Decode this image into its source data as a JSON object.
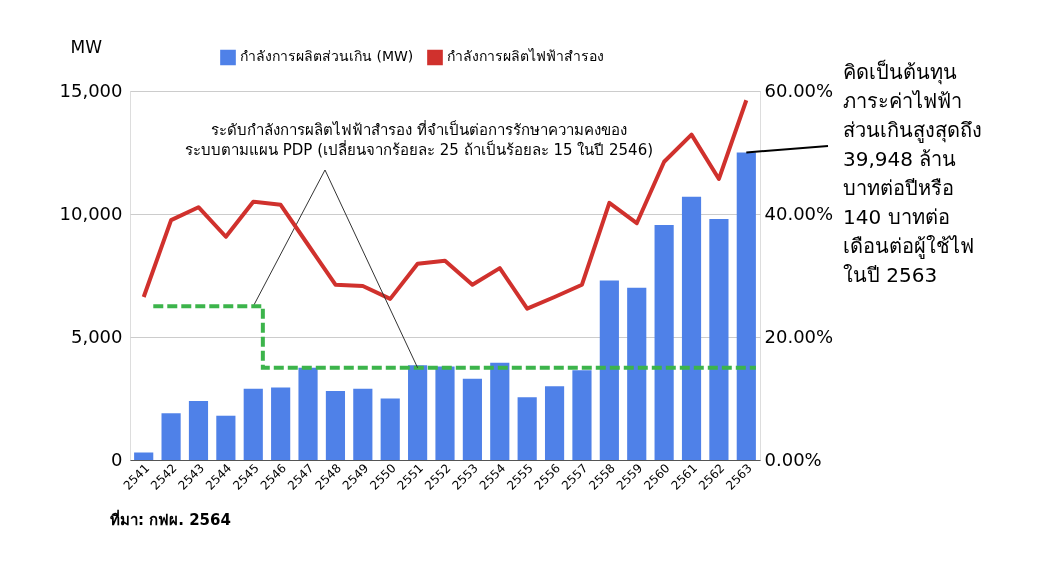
{
  "chart_data": {
    "type": "bar",
    "ylabel": "MW",
    "categories": [
      "2541",
      "2542",
      "2543",
      "2544",
      "2545",
      "2546",
      "2547",
      "2548",
      "2549",
      "2550",
      "2551",
      "2552",
      "2553",
      "2554",
      "2555",
      "2556",
      "2557",
      "2558",
      "2559",
      "2560",
      "2561",
      "2562",
      "2563"
    ],
    "series": [
      {
        "name": "กำลังการผลิตส่วนเกิน (MW)",
        "type": "bar",
        "color": "#4f81e8",
        "values": [
          300,
          1900,
          2400,
          1800,
          2900,
          2950,
          3750,
          2800,
          2900,
          2500,
          3850,
          3800,
          3300,
          3950,
          2550,
          3000,
          3650,
          7300,
          7000,
          9550,
          10700,
          9800,
          12500
        ]
      },
      {
        "name": "กำลังการผลิตไฟฟ้าสำรอง",
        "type": "line",
        "axis": "y2",
        "color": "#d0312d",
        "values": [
          26.5,
          39.0,
          41.1,
          36.3,
          42.0,
          41.5,
          35.0,
          28.5,
          28.3,
          26.2,
          31.9,
          32.4,
          28.5,
          31.2,
          24.6,
          26.5,
          28.5,
          41.8,
          38.5,
          48.5,
          52.9,
          45.7,
          58.5
        ]
      },
      {
        "type": "step",
        "axis": "y2",
        "color": "#3cb44b",
        "line_style": "dashed",
        "values": [
          25,
          25,
          25,
          25,
          25,
          15,
          15,
          15,
          15,
          15,
          15,
          15,
          15,
          15,
          15,
          15,
          15,
          15,
          15,
          15,
          15,
          15,
          15
        ]
      }
    ],
    "ylim": [
      0,
      15000
    ],
    "yticks": [
      {
        "value": 0,
        "label": "0"
      },
      {
        "value": 5000,
        "label": "5,000"
      },
      {
        "value": 10000,
        "label": "10,000"
      },
      {
        "value": 15000,
        "label": "15,000"
      }
    ],
    "y2lim": [
      0,
      60
    ],
    "y2ticks": [
      {
        "value": 0,
        "label": "0.00%"
      },
      {
        "value": 20,
        "label": "20.00%"
      },
      {
        "value": 40,
        "label": "40.00%"
      },
      {
        "value": 60,
        "label": "60.00%"
      }
    ],
    "grid": "y",
    "legend": "top",
    "marker": "none",
    "annotations": [
      {
        "text": "ระดับกำลังการผลิตไฟฟ้าสำรอง ที่จำเป็นต่อการรักษาความคงของ\nระบบตามแผน PDP (เปลี่ยนจากร้อยละ 25 ถ้าเป็นร้อยละ 15 ในปี 2546)",
        "x": "2545",
        "y": 6250
      },
      {
        "text": "คิดเป็นต้นทุน\nภาระค่าไฟฟ้า\nส่วนเกินสูงสุดถึง\n39,948 ล้าน\nบาทต่อปีหรือ\n140 บาทต่อ\nเดือนต่อผู้ใช้ไฟ\nในปี 2563",
        "x": "2563",
        "y": 12500
      },
      "ที่มา: กฟผ. 2564"
    ]
  }
}
